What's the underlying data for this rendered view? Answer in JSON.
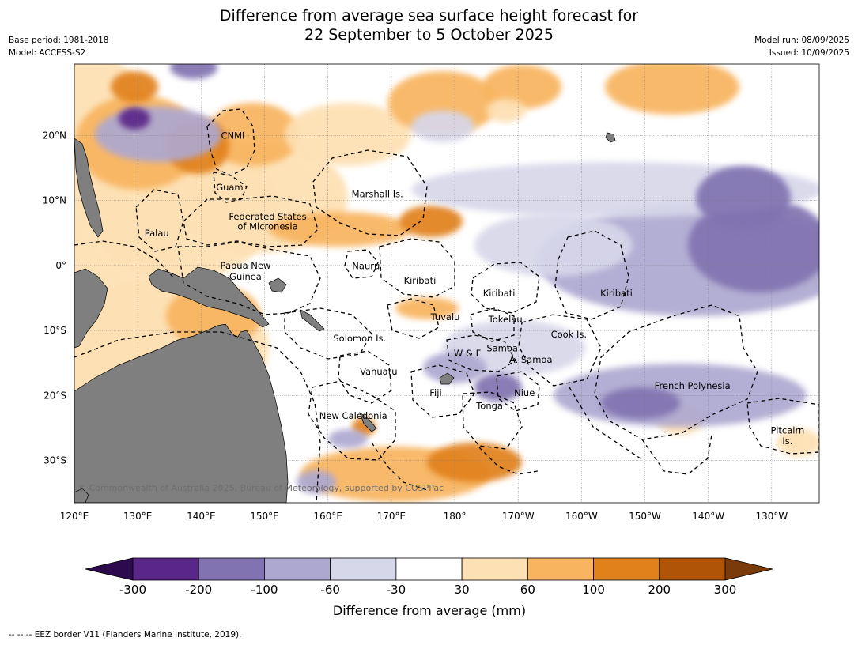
{
  "title_line1": "Difference from average sea surface height forecast for",
  "title_line2": "22 September to 5 October 2025",
  "meta_left": [
    "Base period: 1981-2018",
    "Model: ACCESS-S2"
  ],
  "meta_right": [
    "Model run: 08/09/2025",
    "Issued: 10/09/2025"
  ],
  "lon_labels": [
    {
      "lon": 120,
      "text": "120°E"
    },
    {
      "lon": 130,
      "text": "130°E"
    },
    {
      "lon": 140,
      "text": "140°E"
    },
    {
      "lon": 150,
      "text": "150°E"
    },
    {
      "lon": 160,
      "text": "160°E"
    },
    {
      "lon": 170,
      "text": "170°E"
    },
    {
      "lon": 180,
      "text": "180°"
    },
    {
      "lon": 190,
      "text": "170°W"
    },
    {
      "lon": 200,
      "text": "160°W"
    },
    {
      "lon": 210,
      "text": "150°W"
    },
    {
      "lon": 220,
      "text": "140°W"
    },
    {
      "lon": 230,
      "text": "130°W"
    }
  ],
  "lat_labels": [
    {
      "lat": 20,
      "text": "20°N"
    },
    {
      "lat": 10,
      "text": "10°N"
    },
    {
      "lat": 0,
      "text": "0°"
    },
    {
      "lat": -10,
      "text": "10°S"
    },
    {
      "lat": -20,
      "text": "20°S"
    },
    {
      "lat": -30,
      "text": "30°S"
    }
  ],
  "map_extent": {
    "lon_min": 120,
    "lon_max": 237.5,
    "lat_min": -36.5,
    "lat_max": 31
  },
  "places": [
    {
      "name": "CNMI",
      "lon": 145,
      "lat": 20
    },
    {
      "name": "Guam",
      "lon": 144.5,
      "lat": 12
    },
    {
      "name": "Marshall Is.",
      "lon": 167.8,
      "lat": 11
    },
    {
      "name": "Federated States",
      "lon": 150.5,
      "lat": 7.5
    },
    {
      "name": "of Micronesia",
      "lon": 150.5,
      "lat": 6
    },
    {
      "name": "Palau",
      "lon": 133,
      "lat": 5
    },
    {
      "name": "Papua New",
      "lon": 147,
      "lat": 0
    },
    {
      "name": "Guinea",
      "lon": 147,
      "lat": -1.7
    },
    {
      "name": "Nauru",
      "lon": 166,
      "lat": -0.1
    },
    {
      "name": "Kiribati",
      "lon": 174.5,
      "lat": -2.3
    },
    {
      "name": "Kiribati",
      "lon": 187,
      "lat": -4.3
    },
    {
      "name": "Kiribati",
      "lon": 205.5,
      "lat": -4.3
    },
    {
      "name": "Tuvalu",
      "lon": 178.5,
      "lat": -7.9
    },
    {
      "name": "Tokelau",
      "lon": 188,
      "lat": -8.3
    },
    {
      "name": "Cook Is.",
      "lon": 198,
      "lat": -10.6
    },
    {
      "name": "Solomon Is.",
      "lon": 165,
      "lat": -11.2
    },
    {
      "name": "Samoa",
      "lon": 187.5,
      "lat": -12.7
    },
    {
      "name": "W & F",
      "lon": 182,
      "lat": -13.5
    },
    {
      "name": "A. Samoa",
      "lon": 192,
      "lat": -14.5
    },
    {
      "name": "Vanuatu",
      "lon": 168,
      "lat": -16.3
    },
    {
      "name": "French Polynesia",
      "lon": 217.5,
      "lat": -18.5
    },
    {
      "name": "Fiji",
      "lon": 177,
      "lat": -19.6
    },
    {
      "name": "Niue",
      "lon": 191,
      "lat": -19.6
    },
    {
      "name": "Tonga",
      "lon": 185.5,
      "lat": -21.6
    },
    {
      "name": "New Caledonia",
      "lon": 164,
      "lat": -23.1
    },
    {
      "name": "Pitcairn",
      "lon": 232.5,
      "lat": -25.4
    },
    {
      "name": "Is.",
      "lon": 232.5,
      "lat": -27
    }
  ],
  "copyright": "© Commonwealth of Australia 2025, Bureau of Meteorology, supported by COSPPac",
  "colorbar": {
    "title": "Difference from average (mm)",
    "ticks": [
      "-300",
      "-200",
      "-100",
      "-60",
      "-30",
      "30",
      "60",
      "100",
      "200",
      "300"
    ],
    "colors": [
      "#5a2688",
      "#8173b1",
      "#ada8d0",
      "#d7d7ea",
      "#ffffff",
      "#fde0b3",
      "#f8b45f",
      "#e1811a",
      "#b05508"
    ],
    "under_color": "#2d0a4e",
    "over_color": "#7a3a0a"
  },
  "footnote": "--  --  -- EEZ border V11 (Flanders Marine Institute, 2019).",
  "land_color": "#7f7f7f"
}
